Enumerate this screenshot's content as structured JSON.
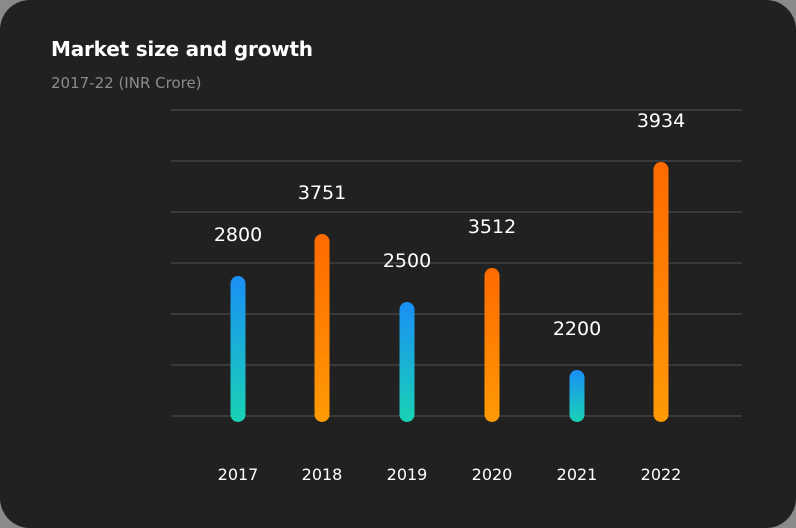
{
  "header": {
    "title": "Market size and growth",
    "subtitle": "2017-22 (INR Crore)"
  },
  "colors": {
    "background": "#212121",
    "grid": "#4a4a4a",
    "blue_top": "#1a8ff5",
    "blue_bottom": "#19d3b4",
    "orange_top": "#ff6a00",
    "orange_bottom": "#ff9a05"
  },
  "chart_data": {
    "type": "bar",
    "title": "Market size and growth",
    "subtitle": "2017-22 (INR Crore)",
    "xlabel": "",
    "ylabel": "INR Crore",
    "categories": [
      "2017",
      "2018",
      "2019",
      "2020",
      "2021",
      "2022"
    ],
    "values": [
      2800,
      3751,
      2500,
      3512,
      2200,
      3934
    ],
    "bar_styles": [
      "blue",
      "orange",
      "blue",
      "orange",
      "blue",
      "orange"
    ],
    "data_labels": [
      "2800",
      "3751",
      "2500",
      "3512",
      "2200",
      "3934"
    ],
    "grid": true,
    "gridline_count": 7,
    "legend": "none",
    "ylim": [
      1900,
      4150
    ]
  }
}
